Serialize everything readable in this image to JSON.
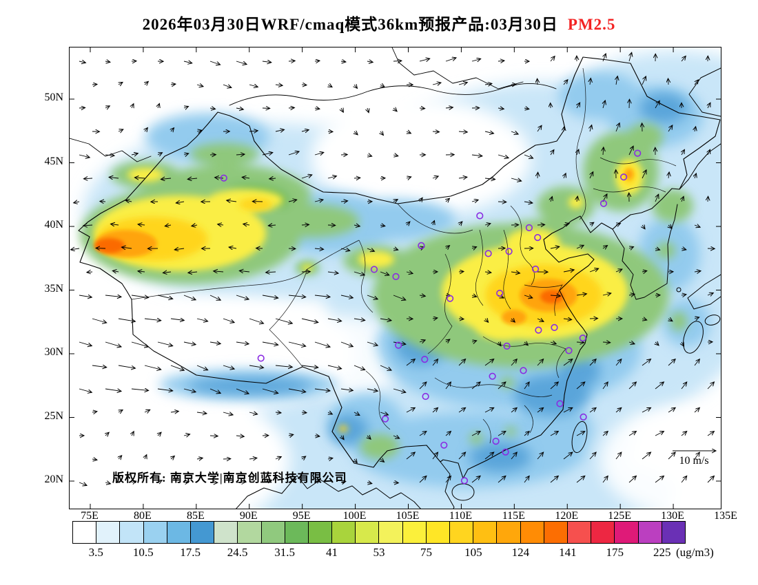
{
  "title": {
    "text": "2026年03月30日WRF/cmaq模式36km预报产品:03月30日",
    "pollutant": "PM2.5",
    "pollutant_color": "#F32222"
  },
  "map": {
    "lat_labels": [
      "50N",
      "45N",
      "40N",
      "35N",
      "30N",
      "25N",
      "20N"
    ],
    "lat_values": [
      50,
      45,
      40,
      35,
      30,
      25,
      20
    ],
    "lon_labels": [
      "75E",
      "80E",
      "85E",
      "90E",
      "95E",
      "100E",
      "105E",
      "110E",
      "115E",
      "120E",
      "125E",
      "130E",
      "135E"
    ],
    "lon_values": [
      75,
      80,
      85,
      90,
      95,
      100,
      105,
      110,
      115,
      120,
      125,
      130,
      135
    ],
    "copyright": "版权所有: 南京大学|南京创蓝科技有限公司",
    "wind_ref_label": "10 m/s",
    "city_marker_color": "#8A2BE2",
    "city_markers_lonlat": [
      [
        87.6,
        43.8
      ],
      [
        126.63,
        45.75
      ],
      [
        125.32,
        43.88
      ],
      [
        123.43,
        41.8
      ],
      [
        116.4,
        39.9
      ],
      [
        117.2,
        39.13
      ],
      [
        114.5,
        38.04
      ],
      [
        112.55,
        37.87
      ],
      [
        111.75,
        40.84
      ],
      [
        106.23,
        38.49
      ],
      [
        103.83,
        36.06
      ],
      [
        101.78,
        36.62
      ],
      [
        108.94,
        34.34
      ],
      [
        113.63,
        34.75
      ],
      [
        117.0,
        36.65
      ],
      [
        117.28,
        31.86
      ],
      [
        118.78,
        32.06
      ],
      [
        121.47,
        31.23
      ],
      [
        120.15,
        30.25
      ],
      [
        114.3,
        30.6
      ],
      [
        112.94,
        28.23
      ],
      [
        115.86,
        28.68
      ],
      [
        104.07,
        30.67
      ],
      [
        106.55,
        29.56
      ],
      [
        106.63,
        26.65
      ],
      [
        102.83,
        24.88
      ],
      [
        91.1,
        29.65
      ],
      [
        119.3,
        26.08
      ],
      [
        121.52,
        25.03
      ],
      [
        113.26,
        23.13
      ],
      [
        108.37,
        22.82
      ],
      [
        110.3,
        20.03
      ],
      [
        114.17,
        22.28
      ]
    ]
  },
  "colorbar": {
    "unit": "(ug/m3)",
    "tick_labels": [
      "3.5",
      "10.5",
      "17.5",
      "24.5",
      "31.5",
      "41",
      "53",
      "75",
      "105",
      "124",
      "141",
      "175",
      "225"
    ],
    "colors": [
      "#FFFFFF",
      "#E1F2FB",
      "#C2E4F8",
      "#9AD1F0",
      "#6CB8E4",
      "#4498D2",
      "#CFE3CB",
      "#B2D89F",
      "#90C97E",
      "#6CB95A",
      "#79BE44",
      "#A9D43C",
      "#D7E94B",
      "#F3F25B",
      "#FBF03B",
      "#FFE626",
      "#FFD51F",
      "#FFBF12",
      "#FFA70B",
      "#FF8C05",
      "#FC6E02",
      "#F6504E",
      "#ED2742",
      "#DF1A78",
      "#BB3FC0",
      "#6A30B5"
    ]
  }
}
